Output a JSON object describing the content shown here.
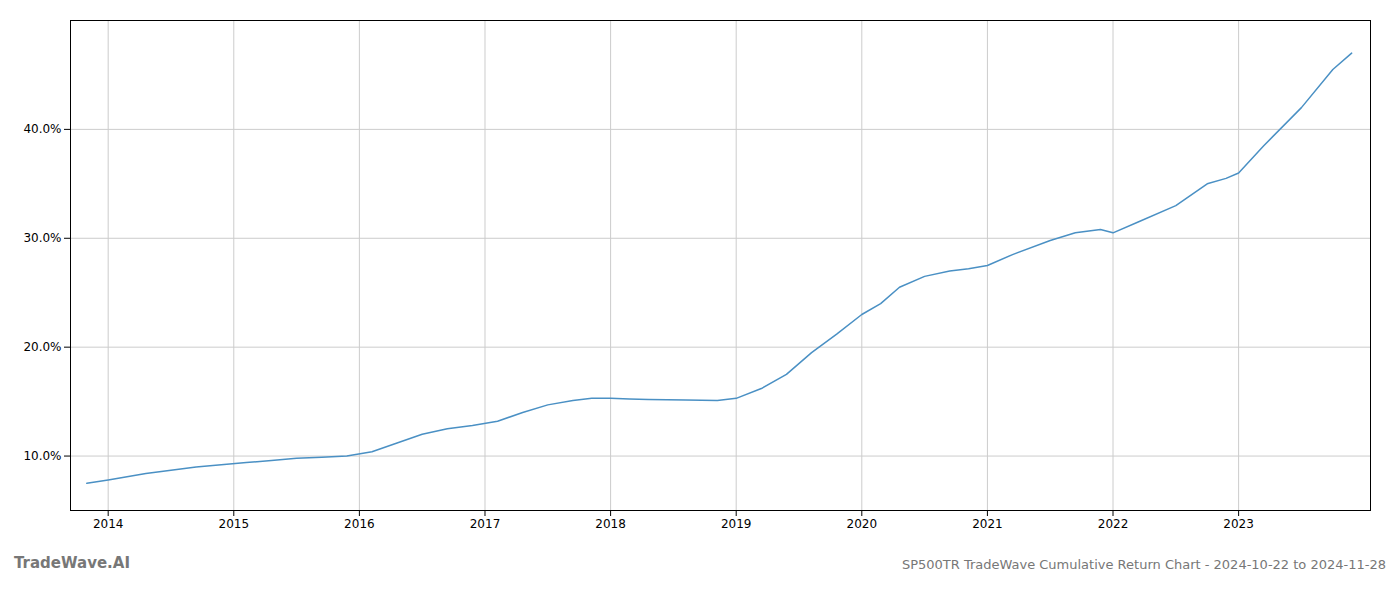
{
  "chart_data": {
    "type": "line",
    "title": "SP500TR TradeWave Cumulative Return Chart - 2024-10-22 to 2024-11-28",
    "annotations": [
      "TradeWave.AI"
    ],
    "x": [
      2013.83,
      2014.0,
      2014.15,
      2014.3,
      2014.5,
      2014.7,
      2014.9,
      2015.1,
      2015.3,
      2015.5,
      2015.7,
      2015.9,
      2016.1,
      2016.3,
      2016.5,
      2016.7,
      2016.9,
      2017.1,
      2017.3,
      2017.5,
      2017.7,
      2017.85,
      2018.0,
      2018.15,
      2018.3,
      2018.6,
      2018.85,
      2019.0,
      2019.2,
      2019.4,
      2019.6,
      2019.8,
      2020.0,
      2020.15,
      2020.3,
      2020.5,
      2020.7,
      2020.85,
      2021.0,
      2021.2,
      2021.5,
      2021.7,
      2021.9,
      2022.0,
      2022.2,
      2022.5,
      2022.75,
      2022.9,
      2023.0,
      2023.2,
      2023.5,
      2023.75,
      2023.9
    ],
    "values": [
      7.5,
      7.8,
      8.1,
      8.4,
      8.7,
      9.0,
      9.2,
      9.4,
      9.6,
      9.8,
      9.9,
      10.0,
      10.4,
      11.2,
      12.0,
      12.5,
      12.8,
      13.2,
      14.0,
      14.7,
      15.1,
      15.3,
      15.3,
      15.25,
      15.2,
      15.15,
      15.1,
      15.3,
      16.2,
      17.5,
      19.5,
      21.2,
      23.0,
      24.0,
      25.5,
      26.5,
      27.0,
      27.2,
      27.5,
      28.5,
      29.8,
      30.5,
      30.8,
      30.5,
      31.5,
      33.0,
      35.0,
      35.5,
      36.0,
      38.5,
      42.0,
      45.5,
      47.0
    ],
    "color": "#4a90c4",
    "xlim": [
      2013.7,
      2024.05
    ],
    "xticks": [
      2014,
      2015,
      2016,
      2017,
      2018,
      2019,
      2020,
      2021,
      2022,
      2023
    ],
    "ylim": [
      5,
      50
    ],
    "yticks": [
      {
        "value": 10.0,
        "label": "10.0%"
      },
      {
        "value": 20.0,
        "label": "20.0%"
      },
      {
        "value": 30.0,
        "label": "30.0%"
      },
      {
        "value": 40.0,
        "label": "40.0%"
      }
    ],
    "grid": true
  }
}
